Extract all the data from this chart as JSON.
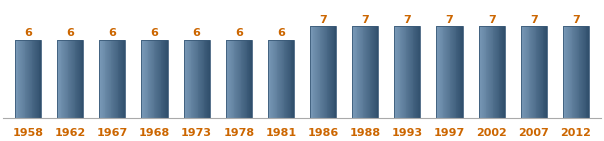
{
  "categories": [
    "1958",
    "1962",
    "1967",
    "1968",
    "1973",
    "1978",
    "1981",
    "1986",
    "1988",
    "1993",
    "1997",
    "2002",
    "2007",
    "2012"
  ],
  "values": [
    6,
    6,
    6,
    6,
    6,
    6,
    6,
    7,
    7,
    7,
    7,
    7,
    7,
    7
  ],
  "bar_color_main": "#4d6d8e",
  "bar_color_light": "#7a9ab8",
  "bar_color_dark": "#2e4d6a",
  "bar_edge_color": "#3a5a78",
  "background_color": "#ffffff",
  "ylim": [
    0,
    8.8
  ],
  "label_fontsize": 8.0,
  "tick_fontsize": 8.0,
  "label_color": "#cc6600",
  "tick_color": "#cc6600",
  "bar_width": 0.62
}
